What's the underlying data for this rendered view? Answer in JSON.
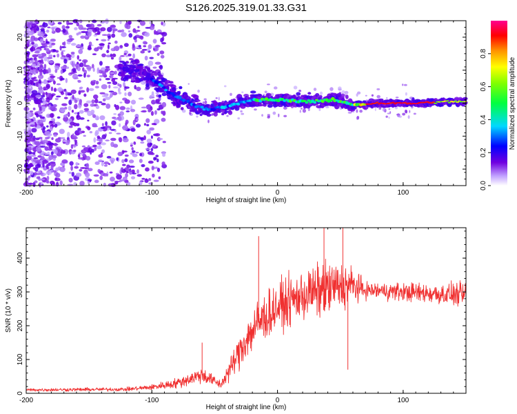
{
  "title": "S126.2025.319.01.33.G31",
  "chart_data": [
    {
      "type": "heatmap",
      "name": "spectrogram",
      "xlabel": "Height of straight line (km)",
      "ylabel": "Frequency (Hz)",
      "xlim": [
        -200,
        150
      ],
      "ylim": [
        -25,
        25
      ],
      "x_ticks": [
        -200,
        -100,
        0,
        100
      ],
      "y_ticks": [
        -20,
        -10,
        0,
        10,
        20
      ],
      "colorbar": {
        "label": "Normalized spectral amplitude",
        "range": [
          0,
          1
        ],
        "ticks": [
          0.0,
          0.2,
          0.4,
          0.6,
          0.8
        ],
        "tick_labels": [
          "0.0",
          "0.2",
          "0.4",
          "0.6",
          "0.8"
        ],
        "colormap": "rainbow (white-violet-blue-cyan-green-yellow-orange-red-magenta)"
      },
      "ridge": {
        "description": "Dominant frequency track",
        "points": [
          {
            "height": -110,
            "freq": 10
          },
          {
            "height": -95,
            "freq": 6
          },
          {
            "height": -85,
            "freq": 3
          },
          {
            "height": -70,
            "freq": 0
          },
          {
            "height": -55,
            "freq": -2
          },
          {
            "height": -40,
            "freq": -1
          },
          {
            "height": -20,
            "freq": 1
          },
          {
            "height": 0,
            "freq": 1
          },
          {
            "height": 25,
            "freq": 0.5
          },
          {
            "height": 45,
            "freq": 1
          },
          {
            "height": 60,
            "freq": -0.5
          },
          {
            "height": 80,
            "freq": 0
          },
          {
            "height": 110,
            "freq": 0
          },
          {
            "height": 140,
            "freq": 0.5
          }
        ]
      }
    },
    {
      "type": "line",
      "name": "snr",
      "xlabel": "Height of straight line (km)",
      "ylabel": "SNR (10 * v/v)",
      "xlim": [
        -200,
        150
      ],
      "ylim": [
        0,
        490
      ],
      "x_ticks": [
        -200,
        -100,
        0,
        100
      ],
      "y_ticks": [
        0,
        100,
        200,
        300,
        400
      ],
      "color": "#f03030",
      "envelope": [
        {
          "x": -200,
          "mean": 10,
          "spread": 7
        },
        {
          "x": -120,
          "mean": 12,
          "spread": 8
        },
        {
          "x": -100,
          "mean": 18,
          "spread": 12
        },
        {
          "x": -80,
          "mean": 30,
          "spread": 22
        },
        {
          "x": -60,
          "mean": 55,
          "spread": 35
        },
        {
          "x": -45,
          "mean": 25,
          "spread": 18
        },
        {
          "x": -35,
          "mean": 90,
          "spread": 60
        },
        {
          "x": -25,
          "mean": 160,
          "spread": 90
        },
        {
          "x": -15,
          "mean": 210,
          "spread": 110
        },
        {
          "x": 0,
          "mean": 255,
          "spread": 100
        },
        {
          "x": 20,
          "mean": 290,
          "spread": 110
        },
        {
          "x": 40,
          "mean": 310,
          "spread": 120
        },
        {
          "x": 58,
          "mean": 320,
          "spread": 90
        },
        {
          "x": 70,
          "mean": 305,
          "spread": 35
        },
        {
          "x": 100,
          "mean": 300,
          "spread": 40
        },
        {
          "x": 125,
          "mean": 295,
          "spread": 45
        },
        {
          "x": 150,
          "mean": 290,
          "spread": 50
        }
      ],
      "spikes": [
        {
          "x": -15,
          "y": 465
        },
        {
          "x": 37,
          "y": 490
        },
        {
          "x": 52,
          "y": 490
        },
        {
          "x": 56,
          "y": 70
        },
        {
          "x": -60,
          "y": 150
        }
      ]
    }
  ]
}
